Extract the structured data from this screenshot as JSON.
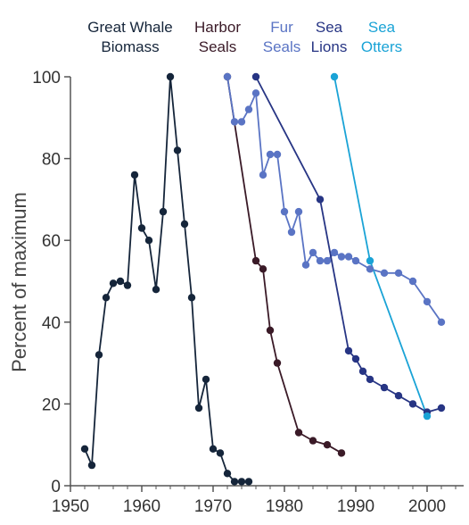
{
  "chart_data": {
    "type": "line",
    "title": "",
    "xlabel": "",
    "ylabel": "Percent of maximum",
    "xlim": [
      1950,
      2005
    ],
    "ylim": [
      0,
      100
    ],
    "x_ticks": [
      1950,
      1960,
      1970,
      1980,
      1990,
      2000
    ],
    "y_ticks": [
      0,
      20,
      40,
      60,
      80,
      100
    ],
    "grid": false,
    "legend_placement": "top, labels above each series",
    "series": [
      {
        "name": "Great Whale Biomass",
        "label_lines": [
          "Great Whale",
          "Biomass"
        ],
        "color": "#15253a",
        "x": [
          1952,
          1953,
          1954,
          1955,
          1956,
          1957,
          1958,
          1959,
          1960,
          1961,
          1962,
          1963,
          1964,
          1965,
          1966,
          1967,
          1968,
          1969,
          1970,
          1971,
          1972,
          1973,
          1974,
          1975
        ],
        "y": [
          9,
          5,
          32,
          46,
          49.5,
          50,
          49,
          76,
          63,
          60,
          48,
          67,
          100,
          82,
          64,
          46,
          19,
          26,
          9,
          8,
          3,
          1,
          1,
          1
        ]
      },
      {
        "name": "Harbor Seals",
        "label_lines": [
          "Harbor",
          "Seals"
        ],
        "color": "#3a1a27",
        "x": [
          1972,
          1976,
          1977,
          1978,
          1979,
          1982,
          1984,
          1986,
          1988
        ],
        "y": [
          100,
          55,
          53,
          38,
          30,
          13,
          11,
          10,
          8
        ]
      },
      {
        "name": "Fur Seals",
        "label_lines": [
          "Fur",
          "Seals"
        ],
        "color": "#5a74c4",
        "x": [
          1972,
          1973,
          1974,
          1975,
          1976,
          1977,
          1978,
          1979,
          1980,
          1981,
          1982,
          1983,
          1984,
          1985,
          1986,
          1987,
          1988,
          1989,
          1990,
          1992,
          1994,
          1996,
          1998,
          2000,
          2002
        ],
        "y": [
          100,
          89,
          89,
          92,
          96,
          76,
          81,
          81,
          67,
          62,
          67,
          54,
          57,
          55,
          55,
          57,
          56,
          56,
          55,
          53,
          52,
          52,
          50,
          45,
          40
        ]
      },
      {
        "name": "Sea Lions",
        "label_lines": [
          "Sea",
          "Lions"
        ],
        "color": "#273584",
        "x": [
          1976,
          1985,
          1989,
          1990,
          1991,
          1992,
          1994,
          1996,
          1998,
          2000,
          2002
        ],
        "y": [
          100,
          70,
          33,
          31,
          28,
          26,
          24,
          22,
          20,
          18,
          19
        ]
      },
      {
        "name": "Sea Otters",
        "label_lines": [
          "Sea",
          "Otters"
        ],
        "color": "#1aa3d6",
        "x": [
          1987,
          1992,
          2000
        ],
        "y": [
          100,
          55,
          17
        ]
      }
    ]
  }
}
